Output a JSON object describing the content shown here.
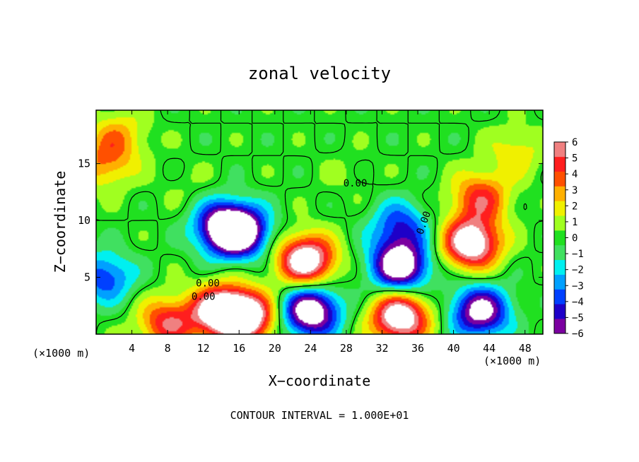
{
  "chart_data": {
    "type": "heatmap",
    "title": "zonal velocity",
    "xlabel": "X−coordinate",
    "ylabel": "Z−coordinate",
    "x_unit_left": "(×1000 m)",
    "x_unit_right": "(×1000 m)",
    "footer": "CONTOUR INTERVAL = 1.000E+01",
    "xlim": [
      0,
      50
    ],
    "ylim": [
      0,
      19.7
    ],
    "x_ticks": [
      4,
      8,
      12,
      16,
      20,
      24,
      28,
      32,
      36,
      40,
      44,
      48
    ],
    "x_tick_labels": [
      "4",
      "8",
      "12",
      "16",
      "20",
      "24",
      "28",
      "32",
      "36",
      "40",
      "44",
      "48"
    ],
    "y_ticks": [
      5,
      10,
      15
    ],
    "y_tick_labels": [
      "5",
      "10",
      "15"
    ],
    "colorbar": {
      "min": -6,
      "max": 6,
      "ticks": [
        "6",
        "5",
        "4",
        "3",
        "2",
        "1",
        "0",
        "−1",
        "−2",
        "−3",
        "−4",
        "−5",
        "−6"
      ],
      "colors": [
        "#7b00a0",
        "#1e00c8",
        "#0040ff",
        "#00a0ff",
        "#00f0f0",
        "#40e060",
        "#20e020",
        "#a0ff20",
        "#f0f000",
        "#ffb000",
        "#ff5000",
        "#ff1e1e",
        "#f08080"
      ],
      "out_of_range_color": "#ffffff"
    },
    "zero_contour_labels": [
      "0.00",
      "0.00",
      "0.00",
      "0.00"
    ],
    "features": [
      {
        "x": 2.5,
        "z": 17.5,
        "value": 2.5
      },
      {
        "x": 1,
        "z": 15,
        "value": 3
      },
      {
        "x": 10,
        "z": 13,
        "value": 0.5
      },
      {
        "x": 14,
        "z": 9.5,
        "value": -5
      },
      {
        "x": 16,
        "z": 9,
        "value": -8
      },
      {
        "x": 23.5,
        "z": 6.5,
        "value": 8
      },
      {
        "x": 34,
        "z": 6,
        "value": -8
      },
      {
        "x": 34,
        "z": 9.5,
        "value": -4
      },
      {
        "x": 43,
        "z": 12,
        "value": 4.5
      },
      {
        "x": 42,
        "z": 8,
        "value": 8
      },
      {
        "x": 47,
        "z": 16,
        "value": 2
      },
      {
        "x": 14,
        "z": 2,
        "value": 8
      },
      {
        "x": 17,
        "z": 1.5,
        "value": 7
      },
      {
        "x": 24,
        "z": 2,
        "value": -8
      },
      {
        "x": 34,
        "z": 1.5,
        "value": 8
      },
      {
        "x": 43,
        "z": 2,
        "value": -7
      },
      {
        "x": 1,
        "z": 5,
        "value": -4
      },
      {
        "x": 8,
        "z": 1,
        "value": 5
      },
      {
        "x": 28,
        "z": 14,
        "value": 0.5
      }
    ]
  }
}
